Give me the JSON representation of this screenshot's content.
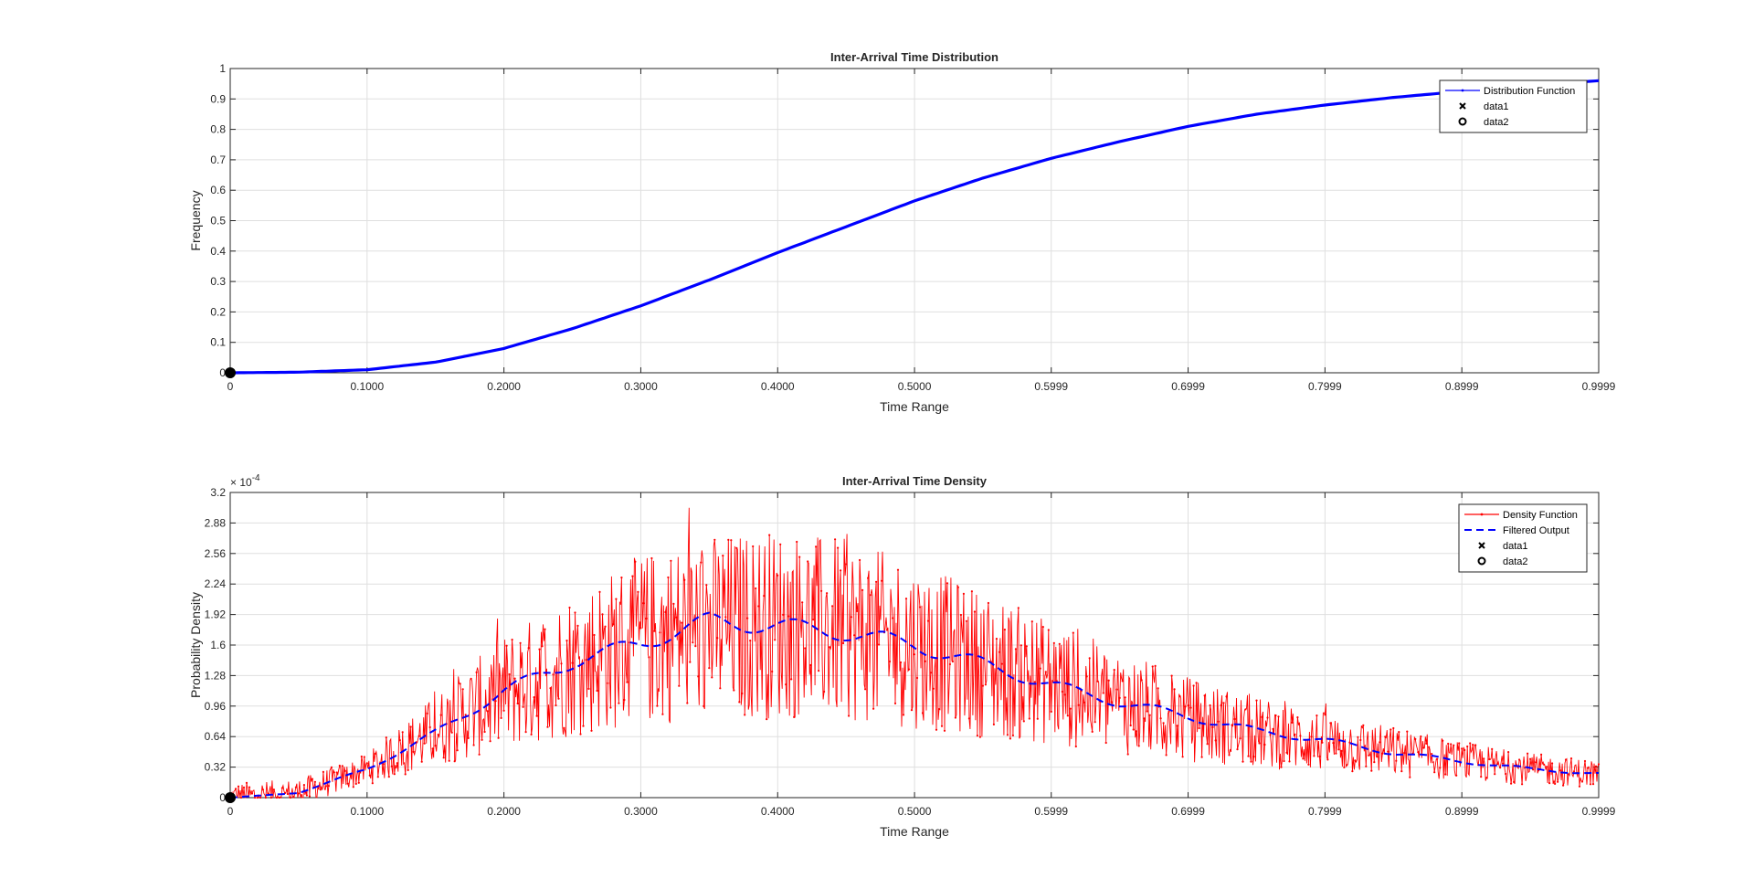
{
  "chart_data": [
    {
      "type": "line",
      "title": "Inter-Arrival Time Distribution",
      "xlabel": "Time Range",
      "ylabel": "Frequency",
      "xlim": [
        0,
        0.9999
      ],
      "ylim": [
        0,
        1
      ],
      "grid": true,
      "legend_position": "top-right",
      "x_ticks": [
        0,
        0.1,
        0.2,
        0.3,
        0.4,
        0.5,
        0.5999,
        0.6999,
        0.7999,
        0.8999,
        0.9999
      ],
      "x_tick_labels": [
        "0",
        "0.1000",
        "0.2000",
        "0.3000",
        "0.4000",
        "0.5000",
        "0.5999",
        "0.6999",
        "0.7999",
        "0.8999",
        "0.9999"
      ],
      "y_ticks": [
        0,
        0.1,
        0.2,
        0.3,
        0.4,
        0.5,
        0.6,
        0.7,
        0.8,
        0.9,
        1
      ],
      "y_tick_labels": [
        "0",
        "0.1",
        "0.2",
        "0.3",
        "0.4",
        "0.5",
        "0.6",
        "0.7",
        "0.8",
        "0.9",
        "1"
      ],
      "series": [
        {
          "name": "Distribution Function",
          "color": "#0000ff",
          "style": "solid-dots",
          "x": [
            0,
            0.05,
            0.1,
            0.15,
            0.2,
            0.25,
            0.3,
            0.35,
            0.4,
            0.45,
            0.5,
            0.55,
            0.6,
            0.65,
            0.7,
            0.75,
            0.8,
            0.85,
            0.9,
            0.95,
            0.9999
          ],
          "y": [
            0,
            0.002,
            0.01,
            0.035,
            0.08,
            0.145,
            0.22,
            0.305,
            0.395,
            0.48,
            0.565,
            0.64,
            0.705,
            0.76,
            0.81,
            0.85,
            0.88,
            0.905,
            0.925,
            0.945,
            0.96
          ]
        },
        {
          "name": "data1",
          "marker": "x",
          "color": "#000000",
          "x": [
            0
          ],
          "y": [
            0
          ]
        },
        {
          "name": "data2",
          "marker": "o",
          "color": "#000000",
          "x": [
            0
          ],
          "y": [
            0
          ]
        }
      ]
    },
    {
      "type": "line",
      "title": "Inter-Arrival Time Density",
      "xlabel": "Time Range",
      "ylabel": "Probability Density",
      "y_exponent": "× 10",
      "y_exponent_power": "-4",
      "xlim": [
        0,
        0.9999
      ],
      "ylim": [
        0,
        3.2
      ],
      "grid": true,
      "legend_position": "top-right",
      "x_ticks": [
        0,
        0.1,
        0.2,
        0.3,
        0.4,
        0.5,
        0.5999,
        0.6999,
        0.7999,
        0.8999,
        0.9999
      ],
      "x_tick_labels": [
        "0",
        "0.1000",
        "0.2000",
        "0.3000",
        "0.4000",
        "0.5000",
        "0.5999",
        "0.6999",
        "0.7999",
        "0.8999",
        "0.9999"
      ],
      "y_ticks": [
        0,
        0.32,
        0.64,
        0.96,
        1.28,
        1.6,
        1.92,
        2.24,
        2.56,
        2.88,
        3.2
      ],
      "y_tick_labels": [
        "0",
        "0.32",
        "0.64",
        "0.96",
        "1.28",
        "1.6",
        "1.92",
        "2.24",
        "2.56",
        "2.88",
        "3.2"
      ],
      "series": [
        {
          "name": "Density Function",
          "color": "#ff0000",
          "style": "noisy-solid-dots",
          "x": [
            0,
            0.05,
            0.1,
            0.15,
            0.2,
            0.25,
            0.3,
            0.35,
            0.4,
            0.45,
            0.5,
            0.55,
            0.6,
            0.65,
            0.7,
            0.75,
            0.8,
            0.85,
            0.9,
            0.95,
            0.9999
          ],
          "y": [
            0,
            0.05,
            0.3,
            0.7,
            1.1,
            1.4,
            1.65,
            1.78,
            1.82,
            1.75,
            1.6,
            1.4,
            1.2,
            1.0,
            0.82,
            0.68,
            0.58,
            0.48,
            0.38,
            0.3,
            0.25
          ],
          "y_peak": 3.2
        },
        {
          "name": "Filtered Output",
          "color": "#0000ff",
          "style": "dashed",
          "x": [
            0,
            0.05,
            0.1,
            0.15,
            0.2,
            0.25,
            0.3,
            0.35,
            0.4,
            0.45,
            0.5,
            0.55,
            0.6,
            0.65,
            0.7,
            0.75,
            0.8,
            0.85,
            0.9,
            0.95,
            0.9999
          ],
          "y": [
            0,
            0.05,
            0.3,
            0.68,
            1.12,
            1.42,
            1.62,
            1.85,
            1.8,
            1.73,
            1.6,
            1.4,
            1.18,
            1.0,
            0.85,
            0.7,
            0.6,
            0.47,
            0.38,
            0.3,
            0.25
          ]
        },
        {
          "name": "data1",
          "marker": "x",
          "color": "#000000",
          "x": [
            0
          ],
          "y": [
            0
          ]
        },
        {
          "name": "data2",
          "marker": "o",
          "color": "#000000",
          "x": [
            0
          ],
          "y": [
            0
          ]
        }
      ]
    }
  ]
}
